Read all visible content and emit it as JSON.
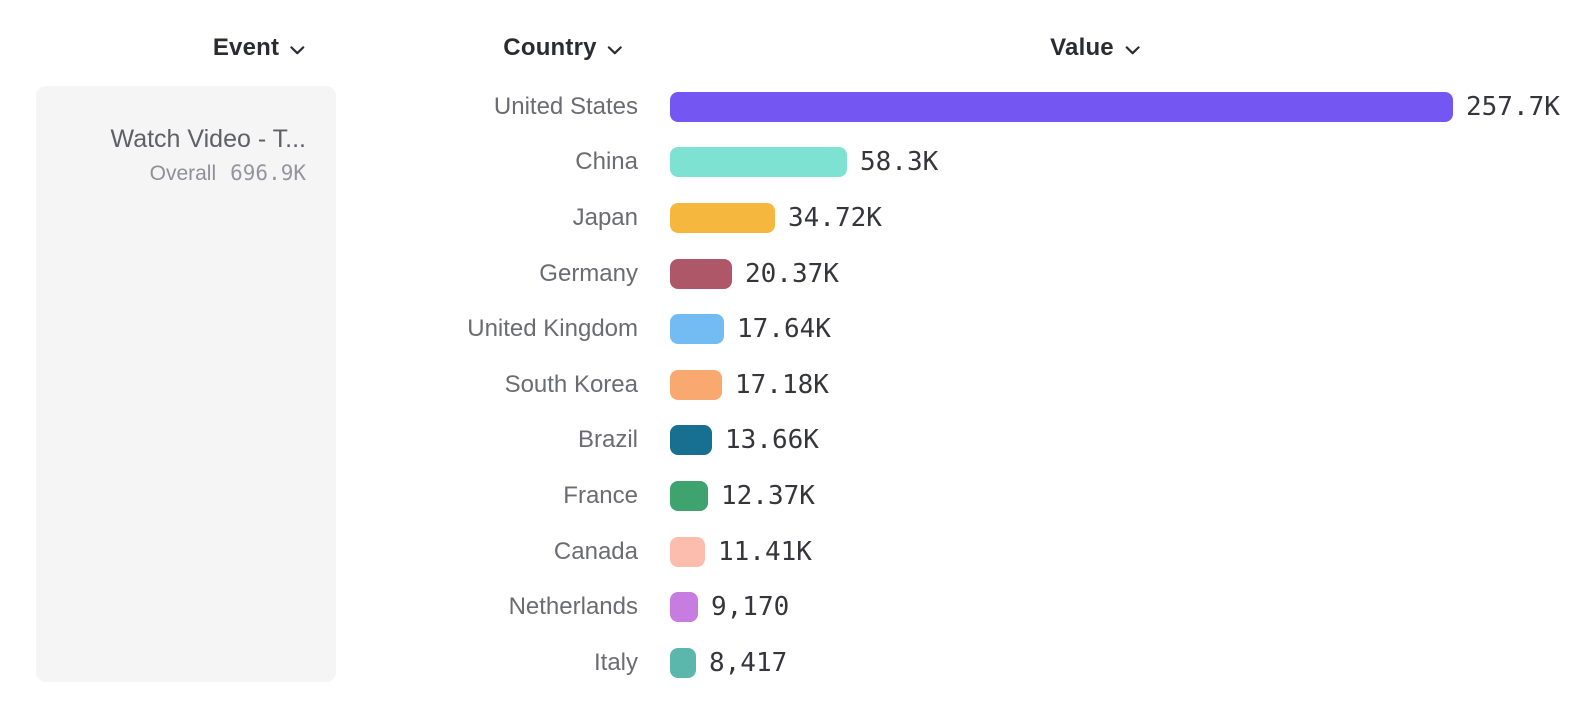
{
  "headers": {
    "event": "Event",
    "country": "Country",
    "value": "Value"
  },
  "event_card": {
    "title": "Watch Video - T...",
    "metric_label": "Overall",
    "metric_value": "696.9K"
  },
  "chart_data": {
    "type": "bar",
    "orientation": "horizontal",
    "title": "",
    "xlabel": "Value",
    "ylabel": "Country",
    "legend": false,
    "grid": false,
    "categories": [
      "United States",
      "China",
      "Japan",
      "Germany",
      "United Kingdom",
      "South Korea",
      "Brazil",
      "France",
      "Canada",
      "Netherlands",
      "Italy"
    ],
    "values": [
      257700,
      58300,
      34720,
      20370,
      17640,
      17180,
      13660,
      12370,
      11410,
      9170,
      8417
    ],
    "rows": [
      {
        "country": "United States",
        "value": 257700,
        "value_label": "257.7K",
        "color": "#7456f2"
      },
      {
        "country": "China",
        "value": 58300,
        "value_label": "58.3K",
        "color": "#7de2d1"
      },
      {
        "country": "Japan",
        "value": 34720,
        "value_label": "34.72K",
        "color": "#f5b73e"
      },
      {
        "country": "Germany",
        "value": 20370,
        "value_label": "20.37K",
        "color": "#ae5769"
      },
      {
        "country": "United Kingdom",
        "value": 17640,
        "value_label": "17.64K",
        "color": "#73bcf3"
      },
      {
        "country": "South Korea",
        "value": 17180,
        "value_label": "17.18K",
        "color": "#f9a870"
      },
      {
        "country": "Brazil",
        "value": 13660,
        "value_label": "13.66K",
        "color": "#17708f"
      },
      {
        "country": "France",
        "value": 12370,
        "value_label": "12.37K",
        "color": "#3ea36e"
      },
      {
        "country": "Canada",
        "value": 11410,
        "value_label": "11.41K",
        "color": "#fcbcae"
      },
      {
        "country": "Netherlands",
        "value": 9170,
        "value_label": "9,170",
        "color": "#c77ce0"
      },
      {
        "country": "Italy",
        "value": 8417,
        "value_label": "8,417",
        "color": "#5bb7ab"
      }
    ]
  },
  "ui_colors": {
    "header_text": "#2b2c31",
    "country_label": "#6b6c71",
    "value_label": "#35363b",
    "event_panel_bg": "#f5f5f6"
  }
}
